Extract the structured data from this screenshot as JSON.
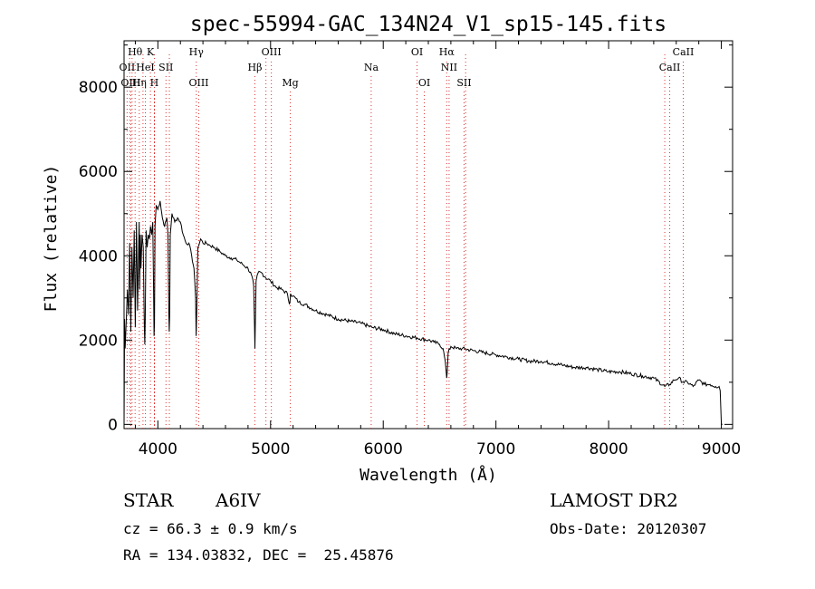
{
  "chart_data": {
    "type": "line",
    "title": "spec-55994-GAC_134N24_V1_sp15-145.fits",
    "xlabel": "Wavelength (Å)",
    "ylabel": "Flux (relative)",
    "xlim": [
      3700,
      9100
    ],
    "ylim": [
      -100,
      9100
    ],
    "xticks": [
      4000,
      5000,
      6000,
      7000,
      8000,
      9000
    ],
    "yticks": [
      0,
      2000,
      4000,
      6000,
      8000
    ],
    "grid": false,
    "series": [
      {
        "x": [
          3700,
          3705,
          3710,
          3720,
          3730,
          3740,
          3750,
          3760,
          3770,
          3780,
          3790,
          3800,
          3810,
          3820,
          3830,
          3834,
          3838,
          3845,
          3850,
          3860,
          3870,
          3880,
          3884,
          3888,
          3895,
          3905,
          3915,
          3925,
          3935,
          3945,
          3955,
          3962,
          3966,
          3970,
          3975,
          3985,
          4000,
          4020,
          4040,
          4060,
          4080,
          4090,
          4097,
          4101,
          4105,
          4110,
          4125,
          4150,
          4175,
          4200,
          4225,
          4250,
          4275,
          4300,
          4320,
          4335,
          4340,
          4345,
          4355,
          4380,
          4400,
          4430,
          4460,
          4500,
          4550,
          4600,
          4650,
          4700,
          4750,
          4800,
          4830,
          4850,
          4858,
          4861,
          4864,
          4872,
          4890,
          4920,
          4950,
          5000,
          5050,
          5100,
          5150,
          5167,
          5172,
          5178,
          5200,
          5250,
          5300,
          5400,
          5500,
          5600,
          5700,
          5800,
          5900,
          6000,
          6100,
          6200,
          6300,
          6400,
          6450,
          6500,
          6530,
          6550,
          6558,
          6563,
          6568,
          6576,
          6600,
          6650,
          6700,
          6800,
          6900,
          7000,
          7100,
          7200,
          7300,
          7400,
          7500,
          7600,
          7700,
          7800,
          7900,
          8000,
          8100,
          8200,
          8300,
          8400,
          8498,
          8542,
          8580,
          8620,
          8662,
          8700,
          8750,
          8800,
          8850,
          8900,
          8950,
          8980,
          8990,
          9000,
          9010
        ],
        "y": [
          0,
          2500,
          1800,
          2500,
          3200,
          2600,
          4300,
          2200,
          4200,
          3000,
          4600,
          2300,
          4800,
          2700,
          4300,
          4800,
          3200,
          4500,
          3700,
          4500,
          4200,
          2300,
          1900,
          2500,
          4600,
          4200,
          4500,
          4400,
          4700,
          4500,
          4800,
          3200,
          2100,
          2400,
          4700,
          5200,
          5100,
          5300,
          4900,
          4700,
          4900,
          4500,
          2700,
          2200,
          2600,
          4500,
          5000,
          4800,
          4900,
          4800,
          4500,
          4300,
          4300,
          4000,
          3700,
          3000,
          2100,
          2700,
          4200,
          4400,
          4300,
          4300,
          4250,
          4200,
          4100,
          4000,
          3950,
          3900,
          3800,
          3700,
          3550,
          3300,
          2300,
          1800,
          2300,
          3400,
          3600,
          3600,
          3500,
          3400,
          3250,
          3200,
          3100,
          2850,
          2900,
          3100,
          3050,
          2900,
          2850,
          2700,
          2600,
          2500,
          2450,
          2400,
          2300,
          2250,
          2150,
          2100,
          2050,
          2000,
          1950,
          1900,
          1800,
          1500,
          1250,
          1100,
          1250,
          1700,
          1850,
          1800,
          1800,
          1750,
          1700,
          1650,
          1600,
          1550,
          1500,
          1500,
          1450,
          1400,
          1350,
          1350,
          1300,
          1250,
          1250,
          1200,
          1150,
          1100,
          900,
          950,
          1050,
          1100,
          1000,
          1000,
          900,
          1050,
          950,
          950,
          900,
          900,
          800,
          0,
          0
        ]
      }
    ],
    "line_markers": [
      {
        "label": "Hθ",
        "x": 3798,
        "row": 1
      },
      {
        "label": "K",
        "x": 3934,
        "row": 1
      },
      {
        "label": "Hγ",
        "x": 4341,
        "row": 1
      },
      {
        "label": "OIII",
        "x": 5007,
        "row": 1
      },
      {
        "label": "OI",
        "x": 6300,
        "row": 1
      },
      {
        "label": "Hα",
        "x": 6563,
        "row": 1
      },
      {
        "label": "CaII",
        "x": 8662,
        "row": 1
      },
      {
        "label": "OII",
        "x": 3727,
        "row": 2
      },
      {
        "label": "HeI",
        "x": 3889,
        "row": 2
      },
      {
        "label": "SII",
        "x": 4072,
        "row": 2
      },
      {
        "label": "Hβ",
        "x": 4861,
        "row": 2
      },
      {
        "label": "Na",
        "x": 5893,
        "row": 2
      },
      {
        "label": "NII",
        "x": 6584,
        "row": 2
      },
      {
        "label": "CaII",
        "x": 8542,
        "row": 2
      },
      {
        "label": "OIII",
        "x": 3760,
        "row": 3
      },
      {
        "label": "Hη",
        "x": 3835,
        "row": 3
      },
      {
        "label": "H",
        "x": 3969,
        "row": 3
      },
      {
        "label": "OIII",
        "x": 4363,
        "row": 3
      },
      {
        "label": "Mg",
        "x": 5175,
        "row": 3
      },
      {
        "label": "OI",
        "x": 6364,
        "row": 3
      },
      {
        "label": "SII",
        "x": 6717,
        "row": 3
      }
    ],
    "extra_dotted_lines": [
      3750,
      3771,
      3868,
      3970,
      4102,
      4959,
      6731,
      8498
    ]
  },
  "info": {
    "object_class": "STAR",
    "subclass": "A6IV",
    "survey": "LAMOST DR2",
    "velocity": "cz = 66.3 ± 0.9 km/s",
    "obs_date": "Obs-Date: 20120307",
    "coords": "RA = 134.03832, DEC =  25.45876"
  }
}
